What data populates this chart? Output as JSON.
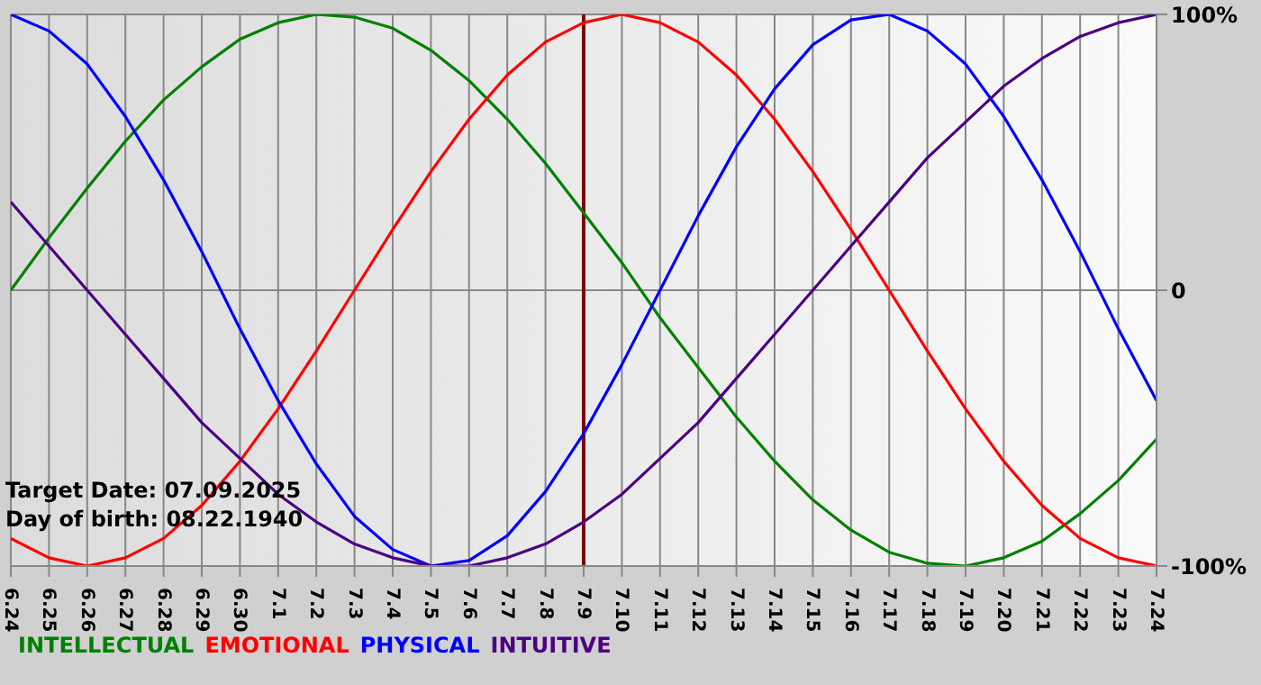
{
  "chart_data": {
    "type": "line",
    "categories": [
      "6.24",
      "6.25",
      "6.26",
      "6.27",
      "6.28",
      "6.29",
      "6.30",
      "7.1",
      "7.2",
      "7.3",
      "7.4",
      "7.5",
      "7.6",
      "7.7",
      "7.8",
      "7.9",
      "7.10",
      "7.11",
      "7.12",
      "7.13",
      "7.14",
      "7.15",
      "7.16",
      "7.17",
      "7.18",
      "7.19",
      "7.20",
      "7.21",
      "7.22",
      "7.23",
      "7.24"
    ],
    "series": [
      {
        "name": "INTELLECTUAL",
        "color": "#008000",
        "values": [
          0,
          19,
          37,
          54,
          69,
          81,
          91,
          97,
          100,
          99,
          95,
          87,
          76,
          62,
          46,
          28,
          10,
          -10,
          -28,
          -46,
          -62,
          -76,
          -87,
          -95,
          -99,
          -100,
          -97,
          -91,
          -81,
          -69,
          -54
        ]
      },
      {
        "name": "EMOTIONAL",
        "color": "#ff0000",
        "values": [
          -90,
          -97,
          -100,
          -97,
          -90,
          -78,
          -62,
          -43,
          -22,
          0,
          22,
          43,
          62,
          78,
          90,
          97,
          100,
          97,
          90,
          78,
          62,
          43,
          22,
          0,
          -22,
          -43,
          -62,
          -78,
          -90,
          -97,
          -100
        ]
      },
      {
        "name": "PHYSICAL",
        "color": "#0000ff",
        "values": [
          100,
          94,
          82,
          63,
          40,
          14,
          -14,
          -40,
          -63,
          -82,
          -94,
          -100,
          -98,
          -89,
          -73,
          -52,
          -27,
          0,
          27,
          52,
          73,
          89,
          98,
          100,
          94,
          82,
          63,
          40,
          14,
          -14,
          -40
        ]
      },
      {
        "name": "INTUITIVE",
        "color": "#4b0082",
        "values": [
          32,
          16,
          0,
          -16,
          -32,
          -48,
          -61,
          -74,
          -84,
          -92,
          -97,
          -100,
          -100,
          -97,
          -92,
          -84,
          -74,
          -61,
          -48,
          -32,
          -16,
          0,
          16,
          32,
          48,
          61,
          74,
          84,
          92,
          97,
          100
        ]
      }
    ],
    "ylim": [
      -100,
      100
    ],
    "yticks": [
      {
        "value": -100,
        "label": "-100%"
      },
      0,
      {
        "value": 100,
        "label": "100%"
      }
    ],
    "grid": true,
    "legend": "bottom left",
    "marker": "none",
    "line_style": "solid",
    "ref_lines": [
      {
        "axis": "x",
        "value": "7.9",
        "color": "#800000"
      }
    ],
    "annotations": [
      "Target Date: 07.09.2025",
      "Day of birth: 08.22.1940"
    ]
  }
}
